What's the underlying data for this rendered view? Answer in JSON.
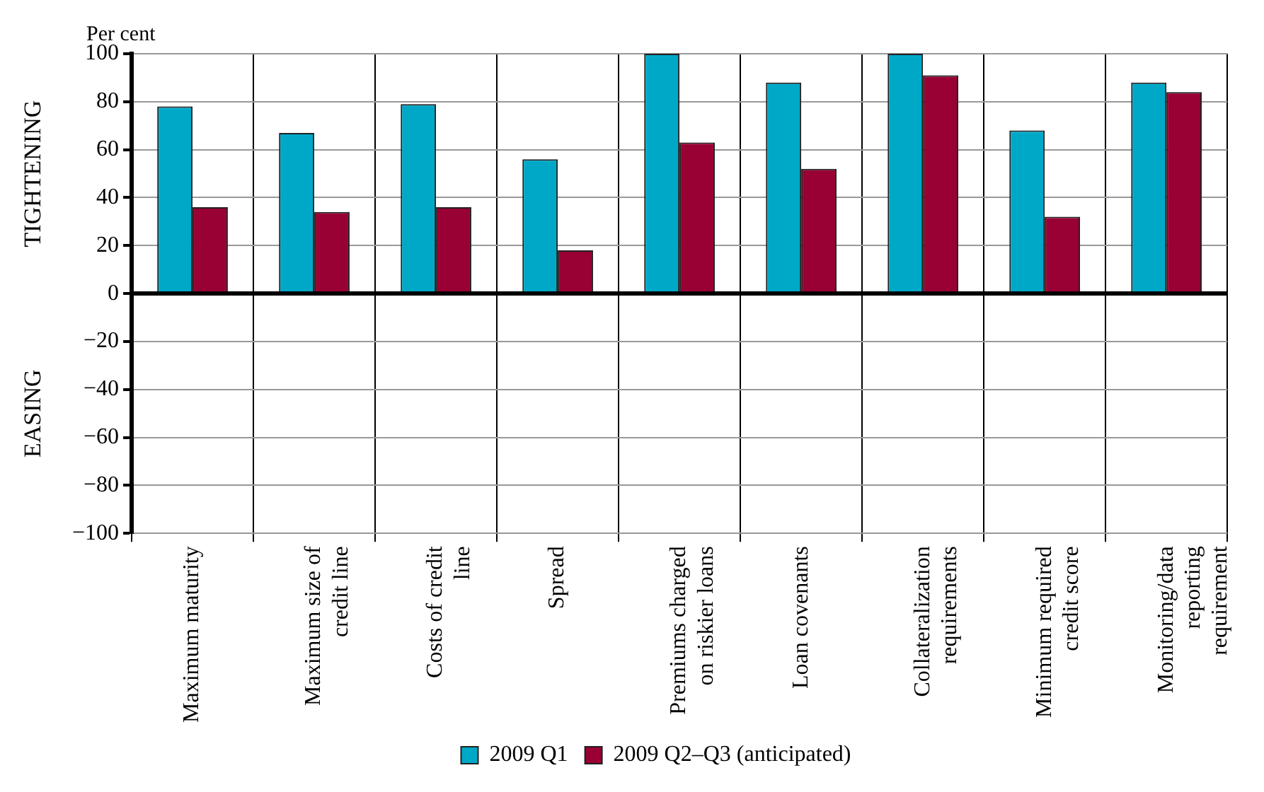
{
  "chart_data": {
    "type": "bar",
    "ylabel": "Per cent",
    "annotations": [
      "TIGHTENING",
      "EASING"
    ],
    "categories": [
      "Maximum maturity",
      "Maximum size of credit line",
      "Costs of credit line",
      "Spread",
      "Premiums charged on riskier loans",
      "Loan covenants",
      "Collateralization requirements",
      "Minimum required credit score",
      "Monitoring/data reporting requirement"
    ],
    "series": [
      {
        "name": "2009 Q1",
        "color": "#00a8c8",
        "values": [
          78,
          67,
          79,
          56,
          100,
          88,
          100,
          68,
          88
        ]
      },
      {
        "name": "2009 Q2–Q3 (anticipated)",
        "color": "#990033",
        "values": [
          36,
          34,
          36,
          18,
          63,
          52,
          91,
          32,
          84
        ]
      }
    ],
    "ylim": [
      -100,
      100
    ],
    "yticks": [
      {
        "value": -100,
        "label": "−100"
      },
      {
        "value": -80,
        "label": "−80"
      },
      {
        "value": -60,
        "label": "−60"
      },
      {
        "value": -40,
        "label": "−40"
      },
      {
        "value": -20,
        "label": "−20"
      },
      0,
      20,
      40,
      60,
      80,
      100
    ],
    "grid": true,
    "legend": "bottom"
  }
}
